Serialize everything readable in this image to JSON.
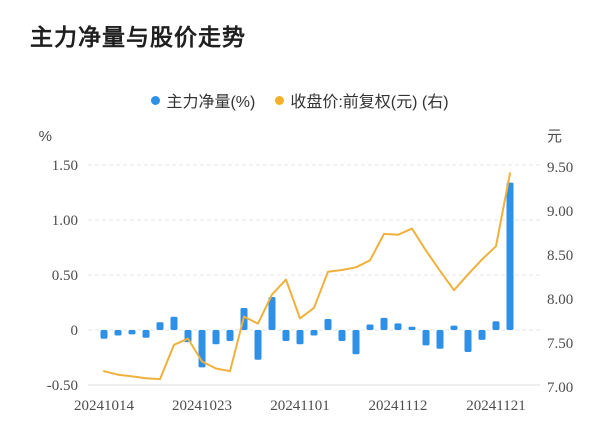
{
  "title": "主力净量与股价走势",
  "legend": [
    {
      "icon": "blue-dot",
      "label": "主力净量(%)",
      "color": "#2F90E8"
    },
    {
      "icon": "yellow-dot",
      "label": "收盘价:前复权(元) (右)",
      "color": "#F5B024"
    }
  ],
  "chart_data": {
    "type": "bar",
    "subtype": "bar+line dual-axis",
    "title": "主力净量与股价走势",
    "grid": "horizontal dashed gridlines at left-axis ticks, light gray",
    "legend_position": "top-center",
    "left_axis": {
      "unit": "%",
      "range": [
        -0.5,
        1.5
      ],
      "ticks": [
        {
          "label": "1.50",
          "value": 1.5
        },
        {
          "label": "1.00",
          "value": 1.0
        },
        {
          "label": "0.50",
          "value": 0.5
        },
        {
          "label": "0",
          "value": 0
        },
        {
          "label": "-0.50",
          "value": -0.5
        }
      ]
    },
    "right_axis": {
      "unit": "元",
      "range": [
        7.0,
        9.5
      ],
      "ticks": [
        {
          "label": "9.50",
          "value": 9.5
        },
        {
          "label": "9.00",
          "value": 9.0
        },
        {
          "label": "8.50",
          "value": 8.5
        },
        {
          "label": "8.00",
          "value": 8.0
        },
        {
          "label": "7.50",
          "value": 7.5
        },
        {
          "label": "7.00",
          "value": 7.0
        }
      ]
    },
    "x_axis": {
      "ticks": [
        {
          "label": "20241014",
          "index": 0
        },
        {
          "label": "20241023",
          "index": 7
        },
        {
          "label": "20241101",
          "index": 14
        },
        {
          "label": "20241112",
          "index": 21
        },
        {
          "label": "20241121",
          "index": 28
        }
      ],
      "num_points": 30
    },
    "series": [
      {
        "name": "主力净量(%)",
        "type": "bar",
        "axis": "left",
        "color": "#2F90E8",
        "values": [
          -0.08,
          -0.05,
          -0.04,
          -0.07,
          0.07,
          0.12,
          -0.11,
          -0.34,
          -0.13,
          -0.1,
          0.2,
          -0.27,
          0.3,
          -0.1,
          -0.13,
          -0.05,
          0.1,
          -0.1,
          -0.22,
          0.05,
          0.11,
          0.06,
          0.03,
          -0.14,
          -0.17,
          0.04,
          -0.2,
          -0.09,
          0.08,
          1.34
        ]
      },
      {
        "name": "收盘价:前复权(元) (右)",
        "type": "line",
        "axis": "right",
        "color": "#F0B13C",
        "values": [
          7.18,
          7.14,
          7.12,
          7.1,
          7.09,
          7.48,
          7.55,
          7.29,
          7.21,
          7.18,
          7.8,
          7.72,
          8.05,
          8.22,
          7.78,
          7.9,
          8.31,
          8.33,
          8.36,
          8.44,
          8.74,
          8.73,
          8.8,
          8.55,
          8.32,
          8.1,
          8.28,
          8.45,
          8.6,
          9.43
        ]
      }
    ],
    "colors": {
      "bar": "#2F90E8",
      "line": "#F0B13C",
      "grid": "#e4e4e4",
      "axis_bottom": "#dcdcdc",
      "tick_text": "#4d4d4d",
      "title_text": "#1f1f1f",
      "legend_text": "#333333"
    }
  }
}
